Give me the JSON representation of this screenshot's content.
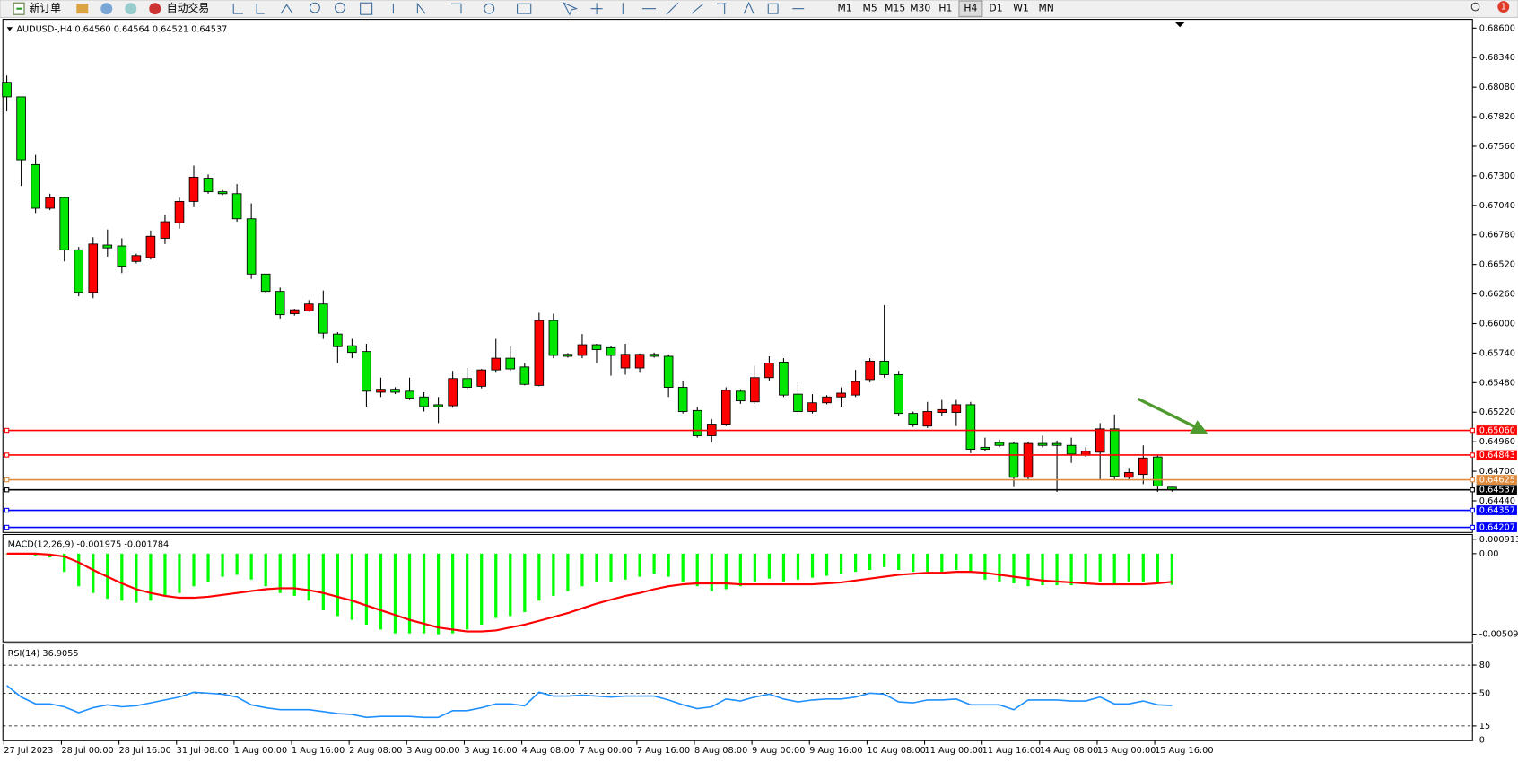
{
  "toolbar": {
    "new_order": "新订单",
    "auto_trade": "自动交易",
    "timeframes": [
      "M1",
      "M5",
      "M15",
      "M30",
      "H1",
      "H4",
      "D1",
      "W1",
      "MN"
    ],
    "active_timeframe": "H4",
    "notification": "1"
  },
  "chart_data": [
    {
      "type": "candlestick",
      "title": "AUDUSD-,H4  0.64560 0.64564 0.64521 0.64537",
      "categories": [
        "27 Jul 2023",
        null,
        null,
        null,
        "28 Jul 00:00",
        null,
        null,
        null,
        "28 Jul 16:00",
        null,
        null,
        null,
        "31 Jul 08:00",
        null,
        null,
        null,
        "1 Aug 00:00",
        null,
        null,
        null,
        "1 Aug 16:00",
        null,
        null,
        null,
        "2 Aug 08:00",
        null,
        null,
        null,
        "3 Aug 00:00",
        null,
        null,
        null,
        "3 Aug 16:00",
        null,
        null,
        null,
        "4 Aug 08:00",
        null,
        null,
        null,
        "7 Aug 00:00",
        null,
        null,
        null,
        "7 Aug 16:00",
        null,
        null,
        null,
        "8 Aug 08:00",
        null,
        null,
        null,
        "9 Aug 00:00",
        null,
        null,
        null,
        "9 Aug 16:00",
        null,
        null,
        null,
        "10 Aug 08:00",
        null,
        null,
        null,
        "11 Aug 00:00",
        null,
        null,
        null,
        "11 Aug 16:00",
        null,
        null,
        null,
        "14 Aug 08:00",
        null,
        null,
        null,
        "15 Aug 00:00",
        null,
        null,
        null,
        "15 Aug 16:00",
        null
      ],
      "open": [
        0.68123,
        0.67995,
        0.67399,
        0.67015,
        0.67109,
        0.66649,
        0.66274,
        0.66691,
        0.66683,
        0.66547,
        0.66581,
        0.66751,
        0.66887,
        0.67075,
        0.67279,
        0.6716,
        0.67143,
        0.66922,
        0.66436,
        0.66283,
        0.66087,
        0.66112,
        0.66172,
        0.65908,
        0.65805,
        0.65754,
        0.65396,
        0.65422,
        0.65405,
        0.65354,
        0.65286,
        0.65277,
        0.65516,
        0.65448,
        0.65592,
        0.65695,
        0.65618,
        0.65456,
        0.66027,
        0.65729,
        0.6572,
        0.65814,
        0.65788,
        0.65609,
        0.65609,
        0.65729,
        0.65712,
        0.65439,
        0.65235,
        0.65013,
        0.65115,
        0.65405,
        0.65311,
        0.65524,
        0.65661,
        0.65379,
        0.65226,
        0.65303,
        0.65354,
        0.65371,
        0.65507,
        0.65669,
        0.6555,
        0.65209,
        0.65098,
        0.65218,
        0.65218,
        0.65286,
        0.64911,
        0.64953,
        0.64945,
        0.64647,
        0.64945,
        0.64945,
        0.64928,
        0.64843,
        0.64868,
        0.65073,
        0.64647,
        0.64672,
        0.64826,
        0.6456
      ],
      "high": [
        0.68182,
        0.67995,
        0.67484,
        0.67143,
        0.67117,
        0.66674,
        0.6676,
        0.66828,
        0.66751,
        0.66615,
        0.66819,
        0.66956,
        0.67109,
        0.6739,
        0.67313,
        0.67175,
        0.67228,
        0.67058,
        0.66436,
        0.66317,
        0.6613,
        0.66206,
        0.66291,
        0.65925,
        0.65865,
        0.65822,
        0.65524,
        0.6544,
        0.65524,
        0.65396,
        0.65354,
        0.65584,
        0.65609,
        0.656,
        0.65865,
        0.65797,
        0.65652,
        0.66095,
        0.66087,
        0.6574,
        0.65908,
        0.65822,
        0.65805,
        0.65822,
        0.65737,
        0.65745,
        0.65729,
        0.65499,
        0.65269,
        0.65158,
        0.65439,
        0.65422,
        0.65626,
        0.65712,
        0.65695,
        0.65482,
        0.65379,
        0.6537,
        0.65439,
        0.65592,
        0.65695,
        0.66163,
        0.65584,
        0.65226,
        0.65311,
        0.65328,
        0.65328,
        0.65311,
        0.64996,
        0.64979,
        0.64962,
        0.64962,
        0.65013,
        0.6497,
        0.64996,
        0.64911,
        0.65124,
        0.652,
        0.6473,
        0.64928,
        0.64843,
        0.64564
      ],
      "low": [
        0.67867,
        0.67211,
        0.66973,
        0.66998,
        0.66547,
        0.6624,
        0.66223,
        0.66589,
        0.66444,
        0.6653,
        0.66564,
        0.667,
        0.66836,
        0.67024,
        0.67143,
        0.6713,
        0.66896,
        0.66393,
        0.66265,
        0.66044,
        0.6607,
        0.66104,
        0.65865,
        0.65652,
        0.65695,
        0.65269,
        0.65354,
        0.6538,
        0.65328,
        0.65226,
        0.65124,
        0.6526,
        0.65422,
        0.6543,
        0.65567,
        0.65584,
        0.65456,
        0.65448,
        0.65695,
        0.657,
        0.65695,
        0.65652,
        0.65541,
        0.6555,
        0.65567,
        0.657,
        0.65354,
        0.65209,
        0.64996,
        0.64953,
        0.65098,
        0.65294,
        0.65294,
        0.65499,
        0.65354,
        0.652,
        0.65209,
        0.6529,
        0.65269,
        0.65354,
        0.65482,
        0.65524,
        0.65183,
        0.6509,
        0.65081,
        0.65183,
        0.65098,
        0.6486,
        0.64877,
        0.64911,
        0.64561,
        0.6463,
        0.64911,
        0.64519,
        0.64774,
        0.64826,
        0.6463,
        0.6463,
        0.64621,
        0.64587,
        0.64519,
        0.64521
      ],
      "close": [
        0.67995,
        0.67441,
        0.67015,
        0.67109,
        0.66649,
        0.66274,
        0.667,
        0.66666,
        0.66504,
        0.66598,
        0.66768,
        0.66896,
        0.67075,
        0.67288,
        0.6716,
        0.67143,
        0.66922,
        0.66436,
        0.66283,
        0.66078,
        0.66121,
        0.66172,
        0.65916,
        0.65797,
        0.65746,
        0.65405,
        0.65422,
        0.65396,
        0.65345,
        0.65269,
        0.65269,
        0.65516,
        0.65439,
        0.65592,
        0.65695,
        0.65601,
        0.65465,
        0.66027,
        0.6572,
        0.65712,
        0.65814,
        0.65771,
        0.6572,
        0.65729,
        0.65729,
        0.65712,
        0.65439,
        0.65226,
        0.65013,
        0.65115,
        0.65413,
        0.6532,
        0.65524,
        0.65652,
        0.65371,
        0.65226,
        0.65303,
        0.65354,
        0.65388,
        0.6549,
        0.65669,
        0.6555,
        0.65209,
        0.65115,
        0.65226,
        0.65243,
        0.65286,
        0.64894,
        0.64894,
        0.64928,
        0.64647,
        0.64945,
        0.64928,
        0.64928,
        0.64851,
        0.64877,
        0.65073,
        0.64655,
        0.64689,
        0.64817,
        0.6457,
        0.64537
      ],
      "up_color": "#ff0000",
      "down_color": "#00e600",
      "ylim": [
        0.64161,
        0.68677
      ],
      "yticks": [
        {
          "value": 0.686,
          "label": "0.68600"
        },
        {
          "value": 0.6834,
          "label": "0.68340"
        },
        {
          "value": 0.6808,
          "label": "0.68080"
        },
        {
          "value": 0.6782,
          "label": "0.67820"
        },
        {
          "value": 0.6756,
          "label": "0.67560"
        },
        {
          "value": 0.673,
          "label": "0.67300"
        },
        {
          "value": 0.6704,
          "label": "0.67040"
        },
        {
          "value": 0.6678,
          "label": "0.66780"
        },
        {
          "value": 0.6652,
          "label": "0.66520"
        },
        {
          "value": 0.6626,
          "label": "0.66260"
        },
        {
          "value": 0.66,
          "label": "0.66000"
        },
        {
          "value": 0.6574,
          "label": "0.65740"
        },
        {
          "value": 0.6548,
          "label": "0.65480"
        },
        {
          "value": 0.6522,
          "label": "0.65220"
        },
        {
          "value": 0.6496,
          "label": "0.64960"
        },
        {
          "value": 0.647,
          "label": "0.64700"
        },
        {
          "value": 0.6444,
          "label": "0.64440"
        }
      ],
      "levels": [
        {
          "value": 0.6506,
          "label": "0.65060",
          "color": "#ff0000"
        },
        {
          "value": 0.64843,
          "label": "0.64843",
          "color": "#ff0000"
        },
        {
          "value": 0.64625,
          "label": "0.64625",
          "color": "#e08a3c"
        },
        {
          "value": 0.64537,
          "label": "0.64537",
          "color": "#000000"
        },
        {
          "value": 0.64357,
          "label": "0.64357",
          "color": "#0000ff"
        },
        {
          "value": 0.64207,
          "label": "0.64207",
          "color": "#0000ff"
        }
      ]
    },
    {
      "type": "bar",
      "title": "MACD(12,26,9) -0.001975 -0.001784",
      "ylim": [
        -0.005584,
        0.001214
      ],
      "yticks": [
        0.000913,
        {
          "value": 0,
          "label": "0.00"
        },
        -0.005093
      ],
      "series": [
        {
          "type": "bar",
          "color": "#00ff00",
          "values": [
            0,
            -6e-05,
            -0.00012,
            -0.00024,
            -0.00115,
            -0.00206,
            -0.00249,
            -0.00285,
            -0.00297,
            -0.0031,
            -0.00297,
            -0.00267,
            -0.00249,
            -0.00206,
            -0.00176,
            -0.00146,
            -0.00134,
            -0.00164,
            -0.00206,
            -0.00249,
            -0.00267,
            -0.00297,
            -0.00358,
            -0.00395,
            -0.00419,
            -0.00449,
            -0.0048,
            -0.00504,
            -0.00504,
            -0.00504,
            -0.0051,
            -0.00504,
            -0.0048,
            -0.00449,
            -0.00407,
            -0.00395,
            -0.0037,
            -0.00297,
            -0.00267,
            -0.00237,
            -0.00206,
            -0.00176,
            -0.00176,
            -0.00164,
            -0.00146,
            -0.00127,
            -0.00146,
            -0.00176,
            -0.00206,
            -0.00237,
            -0.00225,
            -0.00206,
            -0.00176,
            -0.00158,
            -0.00176,
            -0.00164,
            -0.00152,
            -0.0014,
            -0.00127,
            -0.00115,
            -0.00103,
            -0.00085,
            -0.00103,
            -0.00115,
            -0.00115,
            -0.00115,
            -0.00103,
            -0.00115,
            -0.00164,
            -0.00176,
            -0.00188,
            -0.00206,
            -0.002,
            -0.002,
            -0.002,
            -0.00188,
            -0.00176,
            -0.00194,
            -0.00176,
            -0.00176,
            -0.00188,
            -0.001975
          ]
        },
        {
          "type": "line",
          "color": "#ff0000",
          "values": [
            0,
            0,
            0,
            -6e-05,
            -0.00018,
            -0.00055,
            -0.00103,
            -0.00146,
            -0.00188,
            -0.00225,
            -0.00249,
            -0.00267,
            -0.00279,
            -0.00279,
            -0.00273,
            -0.00261,
            -0.00249,
            -0.00237,
            -0.00225,
            -0.00219,
            -0.00219,
            -0.00231,
            -0.00249,
            -0.00273,
            -0.00297,
            -0.00328,
            -0.00358,
            -0.00388,
            -0.00419,
            -0.00443,
            -0.00467,
            -0.0048,
            -0.00492,
            -0.00492,
            -0.00486,
            -0.00467,
            -0.00449,
            -0.00425,
            -0.00401,
            -0.00376,
            -0.00346,
            -0.00316,
            -0.00291,
            -0.00267,
            -0.00249,
            -0.00225,
            -0.00206,
            -0.00194,
            -0.00188,
            -0.00188,
            -0.00188,
            -0.00194,
            -0.00194,
            -0.00194,
            -0.00194,
            -0.00194,
            -0.00194,
            -0.00188,
            -0.00182,
            -0.0017,
            -0.00158,
            -0.00146,
            -0.00134,
            -0.00127,
            -0.00121,
            -0.00121,
            -0.00115,
            -0.00115,
            -0.00121,
            -0.00134,
            -0.00146,
            -0.00158,
            -0.0017,
            -0.00176,
            -0.00182,
            -0.00188,
            -0.00194,
            -0.00194,
            -0.00194,
            -0.00194,
            -0.00188,
            -0.001784
          ]
        }
      ]
    },
    {
      "type": "line",
      "title": "RSI(14) 36.9055",
      "ylim": [
        -0.7,
        102.7
      ],
      "yticks": [
        80,
        50,
        15,
        0
      ],
      "levels": [
        80,
        50,
        15
      ],
      "series": [
        {
          "color": "#1e90ff",
          "values": [
            58.3,
            45.9,
            38.6,
            38.6,
            35.5,
            29.3,
            34.5,
            37.6,
            35.5,
            36.6,
            39.7,
            42.8,
            45.9,
            51.0,
            50.0,
            49.0,
            45.9,
            37.6,
            34.5,
            32.4,
            32.4,
            32.4,
            30.4,
            28.3,
            27.3,
            24.2,
            25.2,
            25.2,
            25.2,
            24.2,
            24.2,
            31.4,
            31.4,
            34.5,
            38.6,
            38.6,
            36.6,
            51.0,
            46.9,
            46.9,
            47.9,
            46.9,
            45.9,
            46.9,
            46.9,
            46.9,
            42.8,
            37.6,
            33.5,
            35.5,
            43.8,
            41.7,
            45.9,
            49.0,
            43.8,
            40.7,
            42.8,
            43.8,
            43.8,
            45.9,
            50.0,
            49.0,
            40.7,
            39.7,
            42.8,
            42.8,
            43.8,
            37.6,
            37.6,
            37.6,
            32.4,
            42.8,
            42.8,
            42.8,
            41.7,
            41.7,
            45.9,
            38.6,
            38.6,
            41.7,
            37.6,
            36.9055
          ]
        }
      ]
    }
  ]
}
